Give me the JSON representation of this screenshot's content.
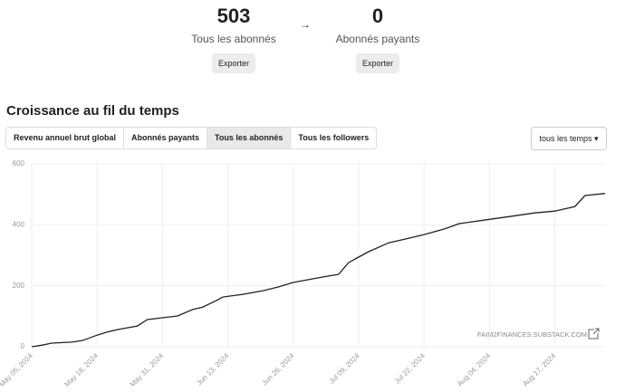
{
  "stats": [
    {
      "value": 503,
      "label": "Tous les abonnés",
      "button": "Exporter"
    },
    {
      "value": 0,
      "label": "Abonnés payants",
      "button": "Exporter"
    }
  ],
  "section_title": "Croissance au fil du temps",
  "tabs": [
    "Revenu annuel brut global",
    "Abonnés payants",
    "Tous les abonnés",
    "Tous les followers"
  ],
  "active_tab": 2,
  "dropdown": "tous les temps",
  "chart_data": {
    "type": "line",
    "color": "#222222",
    "grid": true,
    "annotation": "FAIM2FINANCES.SUBSTACK.COM",
    "x": [
      "2024-05-05",
      "2024-05-07",
      "2024-05-09",
      "2024-05-13",
      "2024-05-15",
      "2024-05-18",
      "2024-05-20",
      "2024-05-22",
      "2024-05-26",
      "2024-05-28",
      "2024-05-31",
      "2024-06-03",
      "2024-06-06",
      "2024-06-08",
      "2024-06-11",
      "2024-06-12",
      "2024-06-16",
      "2024-06-20",
      "2024-06-23",
      "2024-06-26",
      "2024-06-30",
      "2024-07-03",
      "2024-07-05",
      "2024-07-07",
      "2024-07-09",
      "2024-07-11",
      "2024-07-15",
      "2024-07-19",
      "2024-07-22",
      "2024-07-26",
      "2024-07-29",
      "2024-08-04",
      "2024-08-08",
      "2024-08-13",
      "2024-08-17",
      "2024-08-21",
      "2024-08-23",
      "2024-08-27"
    ],
    "values": [
      0,
      5,
      12,
      15,
      20,
      38,
      48,
      56,
      68,
      89,
      95,
      101,
      122,
      130,
      154,
      163,
      172,
      184,
      196,
      211,
      223,
      232,
      237,
      276,
      294,
      312,
      341,
      356,
      368,
      386,
      404,
      418,
      427,
      439,
      445,
      460,
      496,
      503
    ],
    "xlim": [
      "2024-05-05",
      "2024-08-27"
    ],
    "xticks": [
      {
        "value": "2024-05-05",
        "label": "May 05, 2024"
      },
      {
        "value": "2024-05-18",
        "label": "May 18, 2024"
      },
      {
        "value": "2024-05-31",
        "label": "May 31, 2024"
      },
      {
        "value": "2024-06-13",
        "label": "Jun 13, 2024"
      },
      {
        "value": "2024-06-26",
        "label": "Jun 26, 2024"
      },
      {
        "value": "2024-07-09",
        "label": "Jul 09, 2024"
      },
      {
        "value": "2024-07-22",
        "label": "Jul 22, 2024"
      },
      {
        "value": "2024-08-04",
        "label": "Aug 04, 2024"
      },
      {
        "value": "2024-08-17",
        "label": "Aug 17, 2024"
      }
    ],
    "ylim": [
      0,
      600
    ],
    "yticks": [
      0,
      200,
      400,
      600
    ]
  }
}
